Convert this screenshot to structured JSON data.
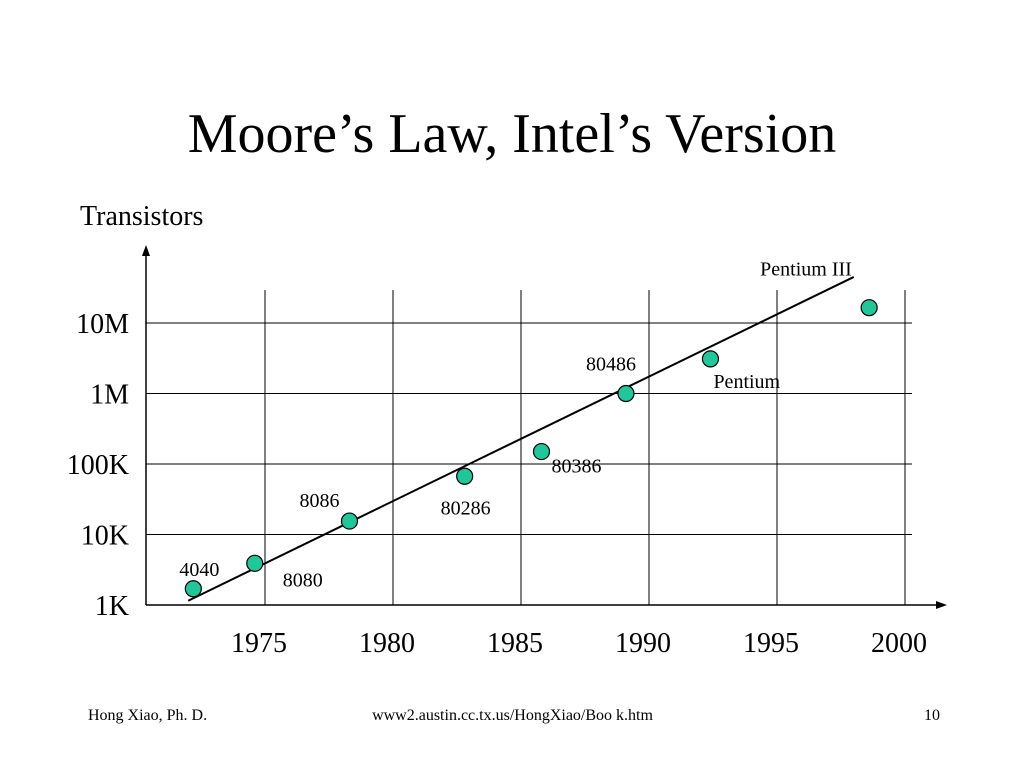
{
  "slide": {
    "title": "Moore’s Law, Intel’s Version",
    "footer_left": "Hong Xiao, Ph. D.",
    "footer_center": "www2.austin.cc.tx.us/HongXiao/Boo k.htm",
    "slide_number": "10"
  },
  "chart_data": {
    "type": "scatter",
    "ylabel": "Transistors",
    "xlabel": "",
    "y_scale": "log",
    "x_ticks": [
      1975,
      1980,
      1985,
      1990,
      1995,
      2000
    ],
    "y_ticks": [
      {
        "value": 1000,
        "label": "1K"
      },
      {
        "value": 10000,
        "label": "10K"
      },
      {
        "value": 100000,
        "label": "100K"
      },
      {
        "value": 1000000,
        "label": "1M"
      },
      {
        "value": 10000000,
        "label": "10M"
      }
    ],
    "grid": true,
    "points": [
      {
        "name": "4040",
        "x": 1972.2,
        "y": 1700
      },
      {
        "name": "8080",
        "x": 1974.6,
        "y": 3900
      },
      {
        "name": "8086",
        "x": 1978.3,
        "y": 15500
      },
      {
        "name": "80286",
        "x": 1982.8,
        "y": 67000
      },
      {
        "name": "80386",
        "x": 1985.8,
        "y": 150000
      },
      {
        "name": "80486",
        "x": 1989.1,
        "y": 1000000
      },
      {
        "name": "Pentium",
        "x": 1992.4,
        "y": 3100000
      },
      {
        "name": "Pentium III",
        "x": 1998.6,
        "y": 16500000
      }
    ],
    "trend_line": {
      "from": {
        "x": 1972.0,
        "y": 1150
      },
      "to": {
        "x": 1998.0,
        "y": 45000000
      }
    },
    "colors": {
      "point_fill": "#1fc79a",
      "line": "#000000",
      "grid": "#000000"
    }
  }
}
